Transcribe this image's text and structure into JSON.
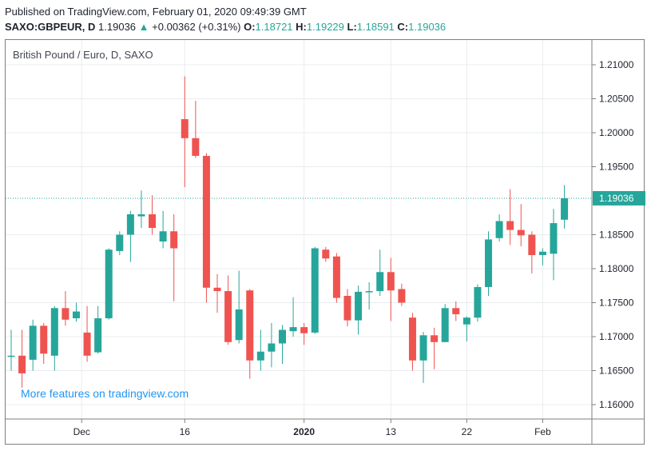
{
  "published": "Published on TradingView.com, February 01, 2020 09:49:39 GMT",
  "header": {
    "symbol": "SAXO:GBPEUR, D",
    "price": "1.19036",
    "arrow": "▲",
    "change": "+0.00362 (+0.31%)",
    "o_label": "O:",
    "o": "1.18721",
    "h_label": "H:",
    "h": "1.19229",
    "l_label": "L:",
    "l": "1.18591",
    "c_label": "C:",
    "c": "1.19036"
  },
  "chart_title": "British Pound / Euro, D, SAXO",
  "promo": "More features on tradingview.com",
  "colors": {
    "up": "#26a69a",
    "down": "#ef5350",
    "grid": "#e9ecef",
    "last_price": "#26a69a"
  },
  "chart_data": {
    "type": "candlestick",
    "y_ticks": [
      "1.21000",
      "1.20500",
      "1.20000",
      "1.19500",
      "1.19036",
      "1.18500",
      "1.18000",
      "1.17500",
      "1.17000",
      "1.16500",
      "1.16000"
    ],
    "ylim": [
      1.1575,
      1.2125
    ],
    "x_tick_labels": [
      {
        "label": "Dec",
        "index": 6.5
      },
      {
        "label": "16",
        "index": 16
      },
      {
        "label": "2020",
        "index": 27
      },
      {
        "label": "13",
        "index": 35
      },
      {
        "label": "22",
        "index": 42
      },
      {
        "label": "Feb",
        "index": 49
      }
    ],
    "last_price": 1.19036,
    "last_price_label": "1.19036",
    "candles": [
      {
        "o": 1.1672,
        "h": 1.171,
        "l": 1.165,
        "c": 1.1672
      },
      {
        "o": 1.1672,
        "h": 1.171,
        "l": 1.1625,
        "c": 1.1646
      },
      {
        "o": 1.1666,
        "h": 1.1725,
        "l": 1.165,
        "c": 1.1716
      },
      {
        "o": 1.1716,
        "h": 1.172,
        "l": 1.166,
        "c": 1.1675
      },
      {
        "o": 1.1672,
        "h": 1.1745,
        "l": 1.165,
        "c": 1.1742
      },
      {
        "o": 1.1742,
        "h": 1.1767,
        "l": 1.1716,
        "c": 1.1725
      },
      {
        "o": 1.1727,
        "h": 1.175,
        "l": 1.1722,
        "c": 1.1737
      },
      {
        "o": 1.1706,
        "h": 1.1745,
        "l": 1.1663,
        "c": 1.1672
      },
      {
        "o": 1.1677,
        "h": 1.1745,
        "l": 1.1675,
        "c": 1.1727
      },
      {
        "o": 1.1727,
        "h": 1.183,
        "l": 1.1725,
        "c": 1.1828
      },
      {
        "o": 1.1826,
        "h": 1.1855,
        "l": 1.182,
        "c": 1.185
      },
      {
        "o": 1.185,
        "h": 1.1885,
        "l": 1.181,
        "c": 1.188
      },
      {
        "o": 1.1877,
        "h": 1.1915,
        "l": 1.186,
        "c": 1.188
      },
      {
        "o": 1.188,
        "h": 1.1908,
        "l": 1.185,
        "c": 1.186
      },
      {
        "o": 1.184,
        "h": 1.1885,
        "l": 1.183,
        "c": 1.1855
      },
      {
        "o": 1.1855,
        "h": 1.188,
        "l": 1.1752,
        "c": 1.183
      },
      {
        "o": 1.202,
        "h": 1.2083,
        "l": 1.192,
        "c": 1.1992
      },
      {
        "o": 1.1992,
        "h": 1.2047,
        "l": 1.1963,
        "c": 1.1966
      },
      {
        "o": 1.1966,
        "h": 1.197,
        "l": 1.175,
        "c": 1.1772
      },
      {
        "o": 1.1772,
        "h": 1.1792,
        "l": 1.1735,
        "c": 1.1767
      },
      {
        "o": 1.1767,
        "h": 1.179,
        "l": 1.1688,
        "c": 1.1692
      },
      {
        "o": 1.1695,
        "h": 1.1797,
        "l": 1.169,
        "c": 1.174
      },
      {
        "o": 1.1768,
        "h": 1.177,
        "l": 1.1638,
        "c": 1.1665
      },
      {
        "o": 1.1665,
        "h": 1.171,
        "l": 1.165,
        "c": 1.1678
      },
      {
        "o": 1.1678,
        "h": 1.172,
        "l": 1.1655,
        "c": 1.169
      },
      {
        "o": 1.169,
        "h": 1.1717,
        "l": 1.166,
        "c": 1.171
      },
      {
        "o": 1.1708,
        "h": 1.1758,
        "l": 1.17,
        "c": 1.1714
      },
      {
        "o": 1.1714,
        "h": 1.172,
        "l": 1.1688,
        "c": 1.1705
      },
      {
        "o": 1.1706,
        "h": 1.1832,
        "l": 1.1704,
        "c": 1.183
      },
      {
        "o": 1.1828,
        "h": 1.1832,
        "l": 1.181,
        "c": 1.1815
      },
      {
        "o": 1.1818,
        "h": 1.1823,
        "l": 1.175,
        "c": 1.1757
      },
      {
        "o": 1.176,
        "h": 1.177,
        "l": 1.1715,
        "c": 1.1724
      },
      {
        "o": 1.1724,
        "h": 1.1775,
        "l": 1.1703,
        "c": 1.1766
      },
      {
        "o": 1.1767,
        "h": 1.178,
        "l": 1.174,
        "c": 1.1767
      },
      {
        "o": 1.1767,
        "h": 1.1828,
        "l": 1.176,
        "c": 1.1795
      },
      {
        "o": 1.1795,
        "h": 1.1816,
        "l": 1.1723,
        "c": 1.1768
      },
      {
        "o": 1.177,
        "h": 1.1778,
        "l": 1.1745,
        "c": 1.175
      },
      {
        "o": 1.1728,
        "h": 1.1735,
        "l": 1.165,
        "c": 1.1665
      },
      {
        "o": 1.1665,
        "h": 1.1707,
        "l": 1.1632,
        "c": 1.1702
      },
      {
        "o": 1.1702,
        "h": 1.1713,
        "l": 1.1652,
        "c": 1.1692
      },
      {
        "o": 1.1692,
        "h": 1.1748,
        "l": 1.1692,
        "c": 1.1742
      },
      {
        "o": 1.1742,
        "h": 1.1752,
        "l": 1.1723,
        "c": 1.1733
      },
      {
        "o": 1.1718,
        "h": 1.173,
        "l": 1.1693,
        "c": 1.1728
      },
      {
        "o": 1.1728,
        "h": 1.1777,
        "l": 1.1722,
        "c": 1.1773
      },
      {
        "o": 1.1773,
        "h": 1.1855,
        "l": 1.176,
        "c": 1.1843
      },
      {
        "o": 1.1845,
        "h": 1.188,
        "l": 1.184,
        "c": 1.187
      },
      {
        "o": 1.187,
        "h": 1.1917,
        "l": 1.1835,
        "c": 1.1857
      },
      {
        "o": 1.1857,
        "h": 1.1895,
        "l": 1.1833,
        "c": 1.1849
      },
      {
        "o": 1.185,
        "h": 1.1855,
        "l": 1.1793,
        "c": 1.182
      },
      {
        "o": 1.182,
        "h": 1.183,
        "l": 1.1805,
        "c": 1.1825
      },
      {
        "o": 1.1822,
        "h": 1.1888,
        "l": 1.1783,
        "c": 1.1867
      },
      {
        "o": 1.1872,
        "h": 1.1923,
        "l": 1.1859,
        "c": 1.19036
      }
    ]
  }
}
